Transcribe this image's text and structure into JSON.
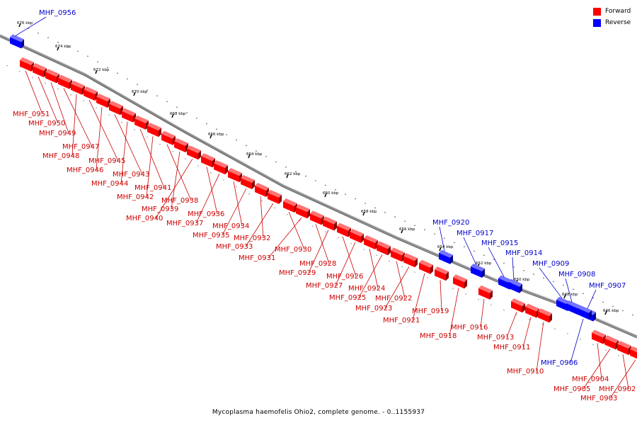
{
  "legend": {
    "items": [
      {
        "label": "Forward",
        "color": "#ff0000"
      },
      {
        "label": "Reverse",
        "color": "#0000ff"
      }
    ]
  },
  "footer": "Mycoplasma haemofelis Ohio2, complete genome. - 0..1155937",
  "colors": {
    "forward": "#ff0000",
    "reverse": "#0000ff",
    "forward_label": "#cc0000",
    "reverse_label": "#0000cc",
    "backbone": "#888888"
  },
  "ticks": [
    "676 kbp",
    "674 kbp",
    "672 kbp",
    "670 kbp",
    "668 kbp",
    "666 kbp",
    "664 kbp",
    "662 kbp",
    "660 kbp",
    "658 kbp",
    "656 kbp",
    "654 kbp",
    "652 kbp",
    "650 kbp",
    "648 kbp",
    "646 kbp"
  ],
  "genes": [
    {
      "label": "MHF_0956",
      "strand": "reverse"
    },
    {
      "label": "MHF_0951",
      "strand": "forward"
    },
    {
      "label": "MHF_0950",
      "strand": "forward"
    },
    {
      "label": "MHF_0949",
      "strand": "forward"
    },
    {
      "label": "MHF_0947",
      "strand": "forward"
    },
    {
      "label": "MHF_0948",
      "strand": "forward"
    },
    {
      "label": "MHF_0945",
      "strand": "forward"
    },
    {
      "label": "MHF_0946",
      "strand": "forward"
    },
    {
      "label": "MHF_0943",
      "strand": "forward"
    },
    {
      "label": "MHF_0944",
      "strand": "forward"
    },
    {
      "label": "MHF_0941",
      "strand": "forward"
    },
    {
      "label": "MHF_0942",
      "strand": "forward"
    },
    {
      "label": "MHF_0938",
      "strand": "forward"
    },
    {
      "label": "MHF_0939",
      "strand": "forward"
    },
    {
      "label": "MHF_0940",
      "strand": "forward"
    },
    {
      "label": "MHF_0936",
      "strand": "forward"
    },
    {
      "label": "MHF_0937",
      "strand": "forward"
    },
    {
      "label": "MHF_0934",
      "strand": "forward"
    },
    {
      "label": "MHF_0935",
      "strand": "forward"
    },
    {
      "label": "MHF_0932",
      "strand": "forward"
    },
    {
      "label": "MHF_0933",
      "strand": "forward"
    },
    {
      "label": "MHF_0930",
      "strand": "forward"
    },
    {
      "label": "MHF_0931",
      "strand": "forward"
    },
    {
      "label": "MHF_0928",
      "strand": "forward"
    },
    {
      "label": "MHF_0929",
      "strand": "forward"
    },
    {
      "label": "MHF_0926",
      "strand": "forward"
    },
    {
      "label": "MHF_0927",
      "strand": "forward"
    },
    {
      "label": "MHF_0924",
      "strand": "forward"
    },
    {
      "label": "MHF_0925",
      "strand": "forward"
    },
    {
      "label": "MHF_0922",
      "strand": "forward"
    },
    {
      "label": "MHF_0923",
      "strand": "forward"
    },
    {
      "label": "MHF_0921",
      "strand": "forward"
    },
    {
      "label": "MHF_0920",
      "strand": "reverse"
    },
    {
      "label": "MHF_0919",
      "strand": "forward"
    },
    {
      "label": "MHF_0918",
      "strand": "forward"
    },
    {
      "label": "MHF_0917",
      "strand": "reverse"
    },
    {
      "label": "MHF_0916",
      "strand": "forward"
    },
    {
      "label": "MHF_0915",
      "strand": "reverse"
    },
    {
      "label": "MHF_0914",
      "strand": "reverse"
    },
    {
      "label": "MHF_0913",
      "strand": "forward"
    },
    {
      "label": "MHF_0911",
      "strand": "forward"
    },
    {
      "label": "MHF_0910",
      "strand": "forward"
    },
    {
      "label": "MHF_0909",
      "strand": "reverse"
    },
    {
      "label": "MHF_0908",
      "strand": "reverse"
    },
    {
      "label": "MHF_0907",
      "strand": "reverse"
    },
    {
      "label": "MHF_0906",
      "strand": "reverse"
    },
    {
      "label": "MHF_0904",
      "strand": "forward"
    },
    {
      "label": "MHF_0905",
      "strand": "forward"
    },
    {
      "label": "MHF_0902",
      "strand": "forward"
    },
    {
      "label": "MHF_0903",
      "strand": "forward"
    }
  ]
}
